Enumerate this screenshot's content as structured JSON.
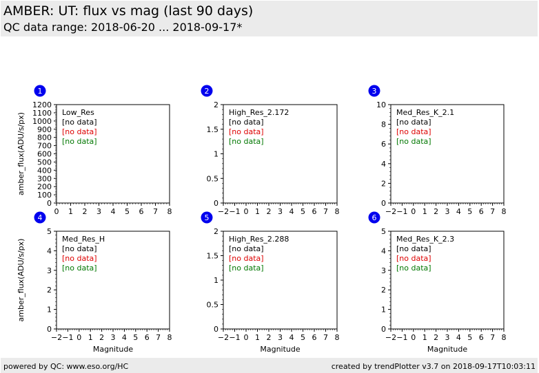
{
  "header": {
    "title": "AMBER: UT: flux vs mag (last 90 days)",
    "subtitle": "QC data range: 2018-06-20 ... 2018-09-17*"
  },
  "footer": {
    "left": "powered by QC: www.eso.org/HC",
    "right": "created by trendPlotter v3.7 on 2018-09-17T10:03:11"
  },
  "colors": {
    "badge": "#0000ee",
    "no_data_2": "#dd0000",
    "no_data_3": "#007700"
  },
  "chart_data": [
    {
      "type": "scatter",
      "badge": "1",
      "label": "Low_Res",
      "no_data": [
        "[no data]",
        "[no data]",
        "[no data]"
      ],
      "xlim": [
        0,
        8
      ],
      "ylim": [
        0,
        1200
      ],
      "xticks": [
        0,
        1,
        2,
        3,
        4,
        5,
        6,
        7,
        8
      ],
      "yticks": [
        0,
        100,
        200,
        300,
        400,
        500,
        600,
        700,
        800,
        900,
        1000,
        1100,
        1200
      ],
      "xlabel": "",
      "ylabel": "amber_flux(ADU/s/px)",
      "series": []
    },
    {
      "type": "scatter",
      "badge": "2",
      "label": "High_Res_2.172",
      "no_data": [
        "[no data]",
        "[no data]",
        "[no data]"
      ],
      "xlim": [
        -2,
        8
      ],
      "ylim": [
        0,
        2
      ],
      "xticks": [
        -2,
        -1,
        0,
        1,
        2,
        3,
        4,
        5,
        6,
        7,
        8
      ],
      "yticks": [
        0,
        0.5,
        1,
        1.5,
        2
      ],
      "xlabel": "",
      "ylabel": "",
      "series": []
    },
    {
      "type": "scatter",
      "badge": "3",
      "label": "Med_Res_K_2.1",
      "no_data": [
        "[no data]",
        "[no data]",
        "[no data]"
      ],
      "xlim": [
        -2,
        8
      ],
      "ylim": [
        0,
        10
      ],
      "xticks": [
        -2,
        -1,
        0,
        1,
        2,
        3,
        4,
        5,
        6,
        7,
        8
      ],
      "yticks": [
        0,
        2,
        4,
        6,
        8,
        10
      ],
      "xlabel": "",
      "ylabel": "",
      "series": []
    },
    {
      "type": "scatter",
      "badge": "4",
      "label": "Med_Res_H",
      "no_data": [
        "[no data]",
        "[no data]",
        "[no data]"
      ],
      "xlim": [
        -2,
        8
      ],
      "ylim": [
        0,
        5
      ],
      "xticks": [
        -2,
        -1,
        0,
        1,
        2,
        3,
        4,
        5,
        6,
        7,
        8
      ],
      "yticks": [
        0,
        1,
        2,
        3,
        4,
        5
      ],
      "xlabel": "Magnitude",
      "ylabel": "amber_flux(ADU/s/px)",
      "series": []
    },
    {
      "type": "scatter",
      "badge": "5",
      "label": "High_Res_2.288",
      "no_data": [
        "[no data]",
        "[no data]",
        "[no data]"
      ],
      "xlim": [
        -2,
        8
      ],
      "ylim": [
        0,
        2
      ],
      "xticks": [
        -2,
        -1,
        0,
        1,
        2,
        3,
        4,
        5,
        6,
        7,
        8
      ],
      "yticks": [
        0,
        0.5,
        1,
        1.5,
        2
      ],
      "xlabel": "Magnitude",
      "ylabel": "",
      "series": []
    },
    {
      "type": "scatter",
      "badge": "6",
      "label": "Med_Res_K_2.3",
      "no_data": [
        "[no data]",
        "[no data]",
        "[no data]"
      ],
      "xlim": [
        -2,
        8
      ],
      "ylim": [
        0,
        5
      ],
      "xticks": [
        -2,
        -1,
        0,
        1,
        2,
        3,
        4,
        5,
        6,
        7,
        8
      ],
      "yticks": [
        0,
        1,
        2,
        3,
        4,
        5
      ],
      "xlabel": "Magnitude",
      "ylabel": "",
      "series": []
    }
  ]
}
